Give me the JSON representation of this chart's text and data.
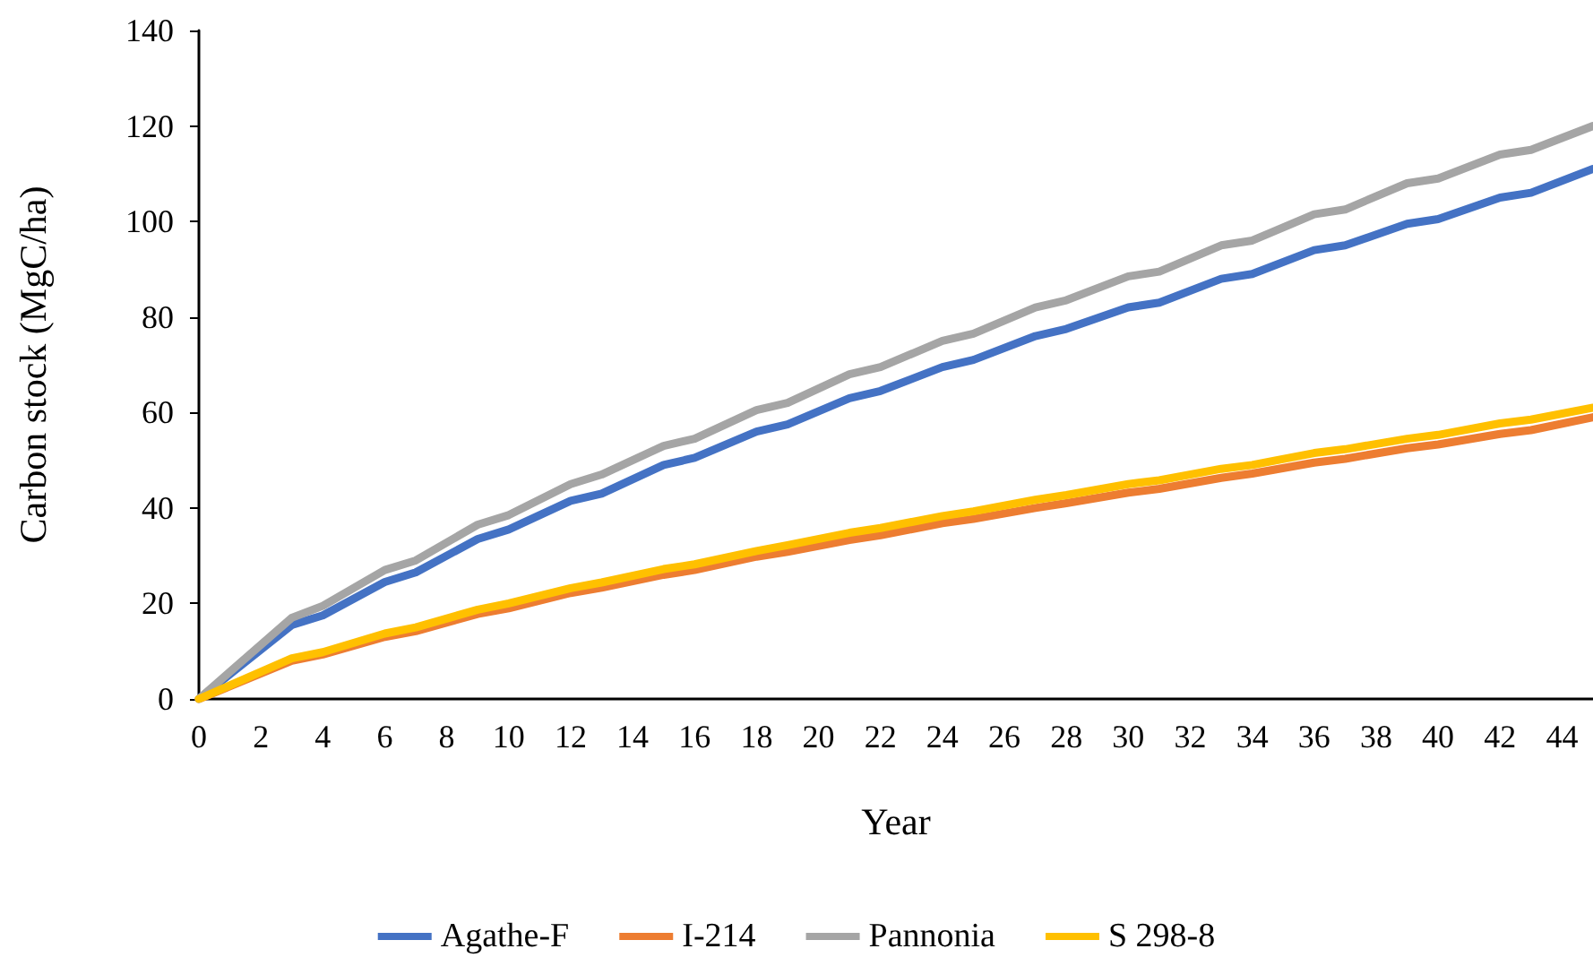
{
  "chart_data": {
    "type": "line",
    "xlabel": "Year",
    "ylabel": "Carbon stock (MgC/ha)",
    "x": [
      0,
      3,
      4,
      6,
      7,
      9,
      10,
      12,
      13,
      15,
      16,
      18,
      19,
      21,
      22,
      24,
      25,
      27,
      28,
      30,
      31,
      33,
      34,
      36,
      37,
      39,
      40,
      42,
      43,
      45
    ],
    "series": [
      {
        "name": "Agathe-F",
        "color": "#4472c4",
        "values": [
          0,
          15.5,
          17.5,
          24.5,
          26.5,
          33.5,
          35.5,
          41.5,
          43,
          49,
          50.5,
          56,
          57.5,
          63,
          64.5,
          69.5,
          71,
          76,
          77.5,
          82,
          83,
          88,
          89,
          94,
          95,
          99.5,
          100.5,
          105,
          106,
          111
        ]
      },
      {
        "name": "I-214",
        "color": "#ed7d31",
        "values": [
          0,
          8,
          9.3,
          13,
          14.2,
          17.8,
          19,
          22.2,
          23.3,
          26,
          27,
          29.8,
          30.8,
          33.3,
          34.3,
          36.8,
          37.7,
          40,
          41,
          43.2,
          44,
          46.3,
          47.2,
          49.5,
          50.3,
          52.5,
          53.3,
          55.5,
          56.3,
          59
        ]
      },
      {
        "name": "Pannonia",
        "color": "#a5a5a5",
        "values": [
          0,
          17,
          19.5,
          27,
          29,
          36.5,
          38.5,
          45,
          47,
          53,
          54.5,
          60.5,
          62,
          68,
          69.5,
          75,
          76.5,
          82,
          83.5,
          88.5,
          89.5,
          95,
          96,
          101.5,
          102.5,
          108,
          109,
          114,
          115,
          120
        ]
      },
      {
        "name": "S 298-8",
        "color": "#ffc000",
        "values": [
          0,
          8.5,
          9.8,
          13.7,
          15,
          18.7,
          20,
          23.2,
          24.4,
          27.2,
          28.2,
          31,
          32.2,
          34.8,
          35.8,
          38.3,
          39.3,
          41.7,
          42.7,
          45,
          45.8,
          48.2,
          49,
          51.5,
          52.3,
          54.5,
          55.3,
          57.7,
          58.5,
          61
        ]
      }
    ],
    "xlim": [
      0,
      45
    ],
    "xticks": [
      0,
      2,
      4,
      6,
      8,
      10,
      12,
      14,
      16,
      18,
      20,
      22,
      24,
      26,
      28,
      30,
      32,
      34,
      36,
      38,
      40,
      42,
      44
    ],
    "ylim": [
      0,
      140
    ],
    "yticks": [
      0,
      20,
      40,
      60,
      80,
      100,
      120,
      140
    ],
    "grid": false,
    "legend": "bottom",
    "marker": "none",
    "line_style": "solid"
  }
}
